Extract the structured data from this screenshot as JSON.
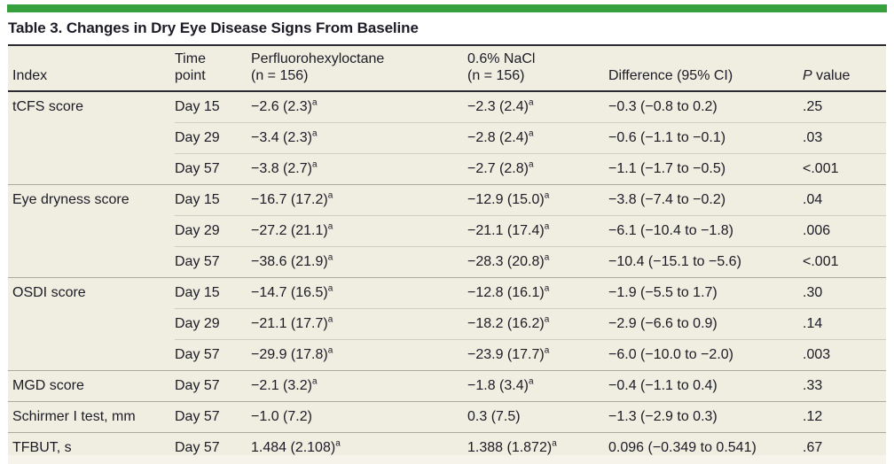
{
  "page": {
    "title": "Table 3. Changes in Dry Eye Disease Signs From Baseline"
  },
  "colors": {
    "accent_green": "#35A03C",
    "row_bg": "#F0EDE1",
    "text": "#1C1C26",
    "rule_dark": "#2A2A30",
    "rule_gray": "#ACAA9E",
    "rule_light": "#D0CDC1",
    "footnote_bg": "#F5F3EA"
  },
  "table": {
    "headers": [
      {
        "key": "index",
        "line1": "Index"
      },
      {
        "key": "time",
        "line1": "Time",
        "line2": "point"
      },
      {
        "key": "pfh",
        "line1": "Perfluorohexyloctane",
        "line2": "(n = 156)"
      },
      {
        "key": "nacl",
        "line1": "0.6% NaCl",
        "line2": "(n = 156)"
      },
      {
        "key": "diff",
        "line1": "Difference (95% CI)"
      },
      {
        "key": "p",
        "italic_lead": "P",
        "line1": " value"
      }
    ],
    "rows": [
      {
        "rule": "none",
        "index": "tCFS score",
        "time": "Day 15",
        "pfh": "−2.6 (2.3)",
        "pfh_sup": "a",
        "nacl": "−2.3 (2.4)",
        "nacl_sup": "a",
        "diff": "−0.3 (−0.8 to 0.2)",
        "p": ".25"
      },
      {
        "rule": "partial",
        "index": "",
        "time": "Day 29",
        "pfh": "−3.4 (2.3)",
        "pfh_sup": "a",
        "nacl": "−2.8 (2.4)",
        "nacl_sup": "a",
        "diff": "−0.6 (−1.1 to −0.1)",
        "p": ".03"
      },
      {
        "rule": "partial",
        "index": "",
        "time": "Day 57",
        "pfh": "−3.8 (2.7)",
        "pfh_sup": "a",
        "nacl": "−2.7 (2.8)",
        "nacl_sup": "a",
        "diff": "−1.1 (−1.7 to −0.5)",
        "p": "<.001"
      },
      {
        "rule": "full",
        "index": "Eye dryness score",
        "time": "Day 15",
        "pfh": "−16.7 (17.2)",
        "pfh_sup": "a",
        "nacl": "−12.9 (15.0)",
        "nacl_sup": "a",
        "diff": "−3.8 (−7.4 to −0.2)",
        "p": ".04"
      },
      {
        "rule": "partial",
        "index": "",
        "time": "Day 29",
        "pfh": "−27.2 (21.1)",
        "pfh_sup": "a",
        "nacl": "−21.1 (17.4)",
        "nacl_sup": "a",
        "diff": "−6.1 (−10.4 to −1.8)",
        "p": ".006"
      },
      {
        "rule": "partial",
        "index": "",
        "time": "Day 57",
        "pfh": "−38.6 (21.9)",
        "pfh_sup": "a",
        "nacl": "−28.3 (20.8)",
        "nacl_sup": "a",
        "diff": "−10.4 (−15.1 to −5.6)",
        "p": "<.001"
      },
      {
        "rule": "full",
        "index": "OSDI score",
        "time": "Day 15",
        "pfh": "−14.7 (16.5)",
        "pfh_sup": "a",
        "nacl": "−12.8 (16.1)",
        "nacl_sup": "a",
        "diff": "−1.9 (−5.5 to 1.7)",
        "p": ".30"
      },
      {
        "rule": "partial",
        "index": "",
        "time": "Day 29",
        "pfh": "−21.1 (17.7)",
        "pfh_sup": "a",
        "nacl": "−18.2 (16.2)",
        "nacl_sup": "a",
        "diff": "−2.9 (−6.6 to 0.9)",
        "p": ".14"
      },
      {
        "rule": "partial",
        "index": "",
        "time": "Day 57",
        "pfh": "−29.9 (17.8)",
        "pfh_sup": "a",
        "nacl": "−23.9 (17.7)",
        "nacl_sup": "a",
        "diff": "−6.0 (−10.0 to −2.0)",
        "p": ".003"
      },
      {
        "rule": "full",
        "index": "MGD score",
        "time": "Day 57",
        "pfh": "−2.1 (3.2)",
        "pfh_sup": "a",
        "nacl": "−1.8 (3.4)",
        "nacl_sup": "a",
        "diff": "−0.4 (−1.1 to 0.4)",
        "p": ".33"
      },
      {
        "rule": "full",
        "index": "Schirmer I test, mm",
        "time": "Day 57",
        "pfh": "−1.0 (7.2)",
        "pfh_sup": "",
        "nacl": "0.3 (7.5)",
        "nacl_sup": "",
        "diff": "−1.3 (−2.9 to 0.3)",
        "p": ".12"
      },
      {
        "rule": "full",
        "index": "TFBUT, s",
        "time": "Day 57",
        "pfh": "1.484 (2.108)",
        "pfh_sup": "a",
        "nacl": "1.388 (1.872)",
        "nacl_sup": "a",
        "diff": "0.096 (−0.349 to 0.541)",
        "p": ".67"
      }
    ]
  }
}
